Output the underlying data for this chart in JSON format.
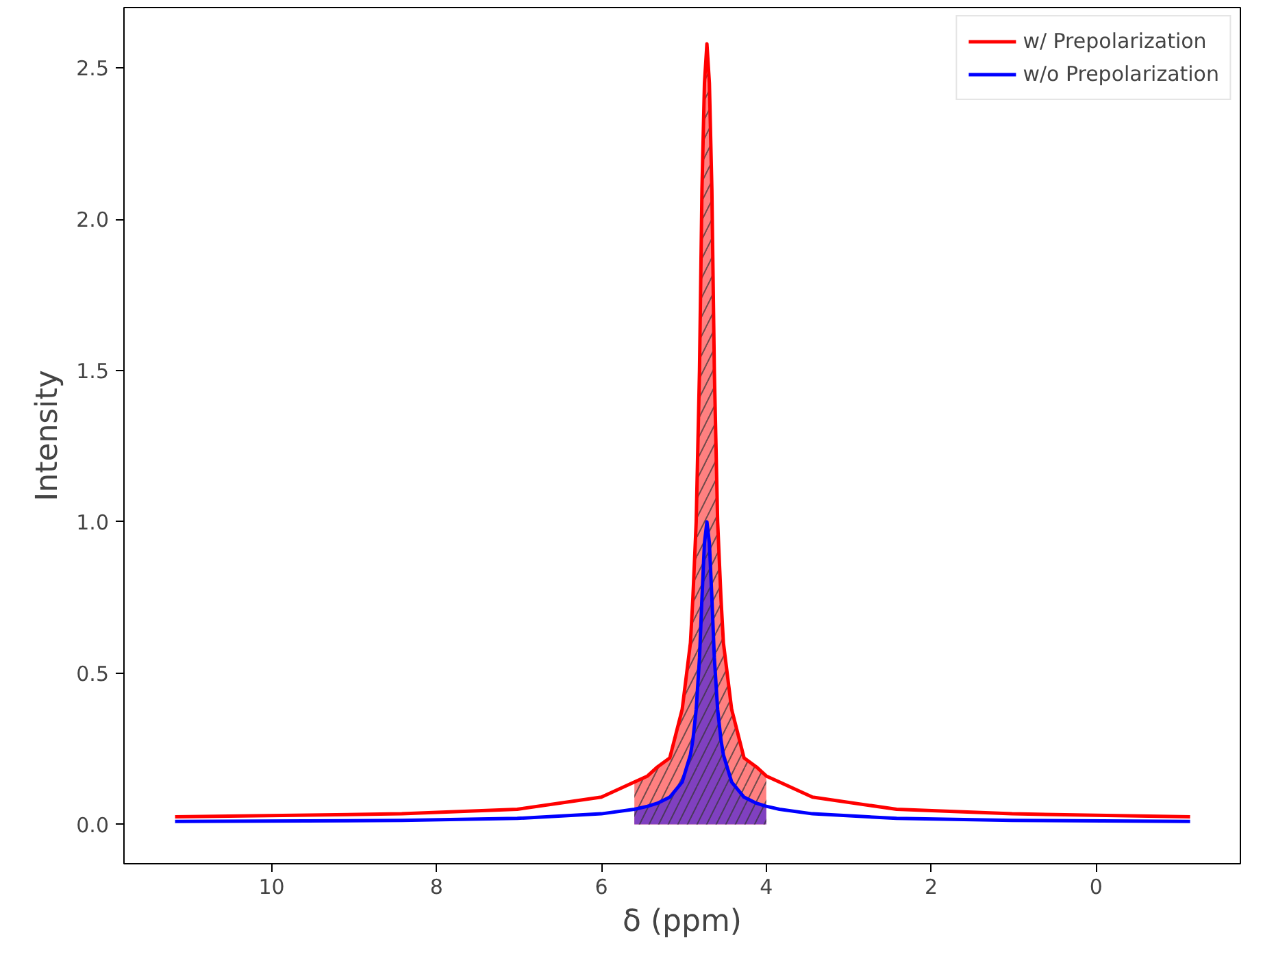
{
  "chart_data": {
    "type": "line",
    "xlabel": "δ (ppm)",
    "ylabel": "Intensity",
    "xlim": [
      11.79,
      -1.75
    ],
    "ylim": [
      -0.13,
      2.7
    ],
    "xticks": [
      10,
      8,
      6,
      4,
      2,
      0
    ],
    "yticks": [
      {
        "value": 0,
        "label": "0.0"
      },
      0.5,
      {
        "value": 1,
        "label": "1.0"
      },
      1.5,
      {
        "value": 2,
        "label": "2.0"
      },
      2.5
    ],
    "grid": false,
    "legend": "top right",
    "series": [
      {
        "type": "area",
        "color": "#ff8080",
        "x": [
          5.6,
          5.44,
          5.32,
          5.17,
          5.02,
          4.92,
          4.89,
          4.85,
          4.81,
          4.78,
          4.75,
          4.72,
          4.69,
          4.66,
          4.63,
          4.59,
          4.55,
          4.52,
          4.42,
          4.27,
          4.12,
          4.0
        ],
        "values": [
          0.14,
          0.16,
          0.19,
          0.22,
          0.38,
          0.6,
          0.75,
          1.0,
          1.5,
          2.1,
          2.45,
          2.58,
          2.45,
          2.1,
          1.5,
          1.0,
          0.75,
          0.6,
          0.38,
          0.22,
          0.19,
          0.16
        ]
      },
      {
        "type": "area",
        "color": "#8040c0",
        "x": [
          5.6,
          5.44,
          5.32,
          5.17,
          5.02,
          4.92,
          4.89,
          4.85,
          4.81,
          4.78,
          4.75,
          4.72,
          4.69,
          4.66,
          4.63,
          4.59,
          4.55,
          4.52,
          4.42,
          4.27,
          4.12,
          4.0
        ],
        "values": [
          0.05,
          0.06,
          0.07,
          0.09,
          0.14,
          0.23,
          0.28,
          0.38,
          0.55,
          0.75,
          0.93,
          1.0,
          0.93,
          0.75,
          0.55,
          0.38,
          0.28,
          0.23,
          0.14,
          0.09,
          0.07,
          0.06
        ]
      },
      {
        "name": "w/ Prepolarization",
        "color": "#ff0000",
        "x": [
          11.17,
          8.42,
          7.02,
          6.0,
          5.6,
          5.44,
          5.32,
          5.17,
          5.02,
          4.92,
          4.89,
          4.85,
          4.81,
          4.78,
          4.75,
          4.72,
          4.69,
          4.66,
          4.63,
          4.59,
          4.55,
          4.52,
          4.42,
          4.27,
          4.12,
          4.0,
          3.84,
          3.44,
          2.42,
          1.02,
          -1.14
        ],
        "values": [
          0.025,
          0.035,
          0.05,
          0.09,
          0.14,
          0.16,
          0.19,
          0.22,
          0.38,
          0.6,
          0.75,
          1.0,
          1.5,
          2.1,
          2.45,
          2.58,
          2.45,
          2.1,
          1.5,
          1.0,
          0.75,
          0.6,
          0.38,
          0.22,
          0.19,
          0.16,
          0.14,
          0.09,
          0.05,
          0.035,
          0.025
        ]
      },
      {
        "name": "w/o Prepolarization",
        "color": "#0000ff",
        "x": [
          11.17,
          8.42,
          7.02,
          6.0,
          5.6,
          5.44,
          5.32,
          5.17,
          5.02,
          4.92,
          4.89,
          4.85,
          4.81,
          4.78,
          4.75,
          4.72,
          4.69,
          4.66,
          4.63,
          4.59,
          4.55,
          4.52,
          4.42,
          4.27,
          4.12,
          4.0,
          3.84,
          3.44,
          2.42,
          1.02,
          -1.14
        ],
        "values": [
          0.01,
          0.013,
          0.02,
          0.035,
          0.05,
          0.06,
          0.07,
          0.09,
          0.14,
          0.23,
          0.28,
          0.38,
          0.55,
          0.75,
          0.93,
          1.0,
          0.93,
          0.75,
          0.55,
          0.38,
          0.28,
          0.23,
          0.14,
          0.09,
          0.07,
          0.06,
          0.05,
          0.035,
          0.02,
          0.013,
          0.01
        ]
      }
    ]
  }
}
